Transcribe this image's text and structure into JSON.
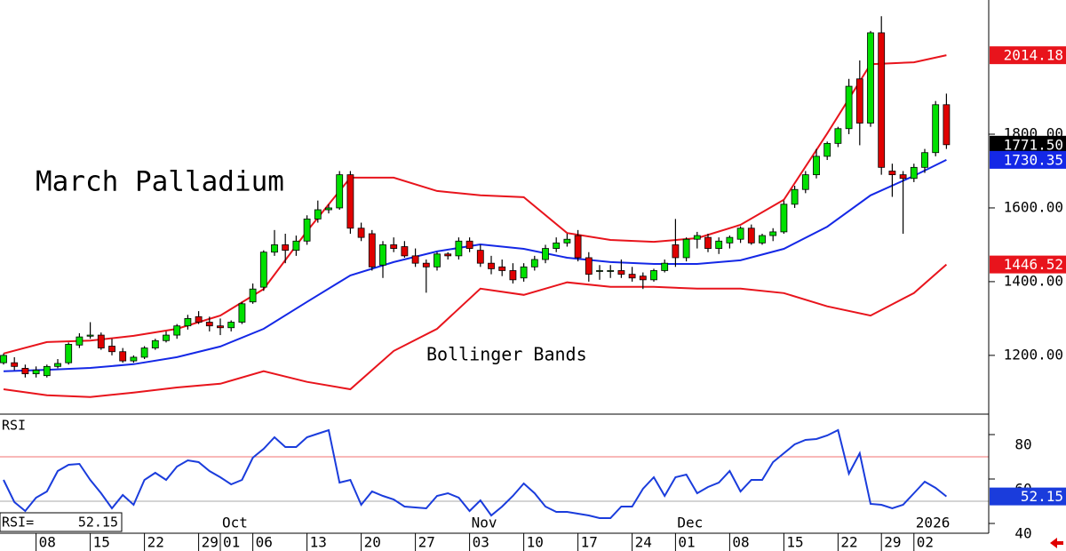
{
  "chart_data": [
    {
      "type": "candlestick",
      "title": "March Palladium",
      "annotation": "Bollinger Bands",
      "ylim": [
        1043,
        2164
      ],
      "yticks": [
        {
          "value": 1200,
          "label": "1200.00"
        },
        {
          "value": 1400,
          "label": "1400.00"
        },
        {
          "value": 1600,
          "label": "1600.00"
        },
        {
          "value": 1800,
          "label": "1800.00"
        }
      ],
      "categories": [
        null,
        null,
        null,
        "08",
        null,
        null,
        null,
        null,
        "15",
        null,
        null,
        null,
        null,
        "22",
        null,
        null,
        null,
        null,
        "29",
        null,
        "01",
        null,
        null,
        "06",
        null,
        null,
        null,
        null,
        "13",
        null,
        null,
        null,
        null,
        "20",
        null,
        null,
        null,
        null,
        "27",
        null,
        null,
        null,
        null,
        "03",
        null,
        null,
        null,
        null,
        "10",
        null,
        null,
        null,
        null,
        "17",
        null,
        null,
        null,
        null,
        "24",
        null,
        null,
        null,
        "01",
        null,
        null,
        null,
        null,
        "08",
        null,
        null,
        null,
        null,
        "15",
        null,
        null,
        null,
        null,
        "22",
        null,
        null,
        null,
        "29",
        null,
        null,
        "02",
        null,
        null,
        null
      ],
      "months": [
        null,
        null,
        null,
        null,
        null,
        null,
        null,
        null,
        null,
        null,
        null,
        null,
        null,
        null,
        null,
        null,
        null,
        null,
        null,
        null,
        "Oct",
        null,
        null,
        null,
        null,
        null,
        null,
        null,
        null,
        null,
        null,
        null,
        null,
        null,
        null,
        null,
        null,
        null,
        null,
        null,
        null,
        null,
        null,
        "Nov",
        null,
        null,
        null,
        null,
        null,
        null,
        null,
        null,
        null,
        null,
        null,
        null,
        null,
        null,
        null,
        null,
        null,
        null,
        "Dec",
        null,
        null,
        null,
        null,
        null,
        null,
        null,
        null,
        null,
        null,
        null,
        null,
        null,
        null,
        null,
        null,
        null,
        null,
        null,
        null,
        null,
        "2026",
        null,
        null,
        null
      ],
      "up_color": "#00e000",
      "down_color": "#e00000",
      "ohlc": [
        [
          1180,
          1205,
          1175,
          1200
        ],
        [
          1180,
          1195,
          1160,
          1170
        ],
        [
          1165,
          1175,
          1140,
          1150
        ],
        [
          1150,
          1170,
          1140,
          1160
        ],
        [
          1145,
          1175,
          1140,
          1170
        ],
        [
          1170,
          1190,
          1165,
          1178
        ],
        [
          1180,
          1235,
          1175,
          1230
        ],
        [
          1228,
          1260,
          1220,
          1250
        ],
        [
          1252,
          1290,
          1245,
          1255
        ],
        [
          1255,
          1262,
          1215,
          1220
        ],
        [
          1225,
          1245,
          1200,
          1210
        ],
        [
          1210,
          1220,
          1180,
          1185
        ],
        [
          1185,
          1200,
          1180,
          1195
        ],
        [
          1195,
          1225,
          1190,
          1220
        ],
        [
          1220,
          1245,
          1215,
          1240
        ],
        [
          1240,
          1265,
          1235,
          1255
        ],
        [
          1255,
          1285,
          1245,
          1280
        ],
        [
          1280,
          1310,
          1270,
          1300
        ],
        [
          1305,
          1320,
          1285,
          1290
        ],
        [
          1290,
          1305,
          1265,
          1280
        ],
        [
          1280,
          1300,
          1255,
          1275
        ],
        [
          1275,
          1295,
          1265,
          1290
        ],
        [
          1290,
          1345,
          1285,
          1340
        ],
        [
          1345,
          1395,
          1340,
          1380
        ],
        [
          1385,
          1485,
          1375,
          1480
        ],
        [
          1480,
          1540,
          1470,
          1500
        ],
        [
          1500,
          1530,
          1450,
          1485
        ],
        [
          1485,
          1525,
          1470,
          1510
        ],
        [
          1510,
          1580,
          1500,
          1570
        ],
        [
          1570,
          1620,
          1560,
          1595
        ],
        [
          1595,
          1610,
          1585,
          1600
        ],
        [
          1600,
          1700,
          1595,
          1690
        ],
        [
          1690,
          1700,
          1530,
          1545
        ],
        [
          1545,
          1560,
          1510,
          1520
        ],
        [
          1530,
          1540,
          1430,
          1440
        ],
        [
          1445,
          1510,
          1410,
          1500
        ],
        [
          1500,
          1520,
          1480,
          1490
        ],
        [
          1495,
          1510,
          1465,
          1470
        ],
        [
          1470,
          1490,
          1440,
          1450
        ],
        [
          1450,
          1460,
          1370,
          1440
        ],
        [
          1440,
          1480,
          1430,
          1475
        ],
        [
          1475,
          1480,
          1460,
          1470
        ],
        [
          1470,
          1520,
          1460,
          1510
        ],
        [
          1510,
          1520,
          1480,
          1490
        ],
        [
          1485,
          1500,
          1440,
          1450
        ],
        [
          1450,
          1470,
          1420,
          1435
        ],
        [
          1440,
          1460,
          1415,
          1430
        ],
        [
          1430,
          1450,
          1395,
          1405
        ],
        [
          1410,
          1450,
          1400,
          1440
        ],
        [
          1440,
          1470,
          1430,
          1460
        ],
        [
          1460,
          1500,
          1450,
          1490
        ],
        [
          1490,
          1520,
          1480,
          1505
        ],
        [
          1505,
          1530,
          1495,
          1515
        ],
        [
          1525,
          1540,
          1455,
          1465
        ],
        [
          1465,
          1480,
          1400,
          1420
        ],
        [
          1430,
          1445,
          1405,
          1430
        ],
        [
          1430,
          1445,
          1410,
          1430
        ],
        [
          1430,
          1460,
          1410,
          1420
        ],
        [
          1420,
          1440,
          1400,
          1410
        ],
        [
          1415,
          1425,
          1380,
          1405
        ],
        [
          1405,
          1435,
          1400,
          1430
        ],
        [
          1430,
          1460,
          1425,
          1450
        ],
        [
          1500,
          1570,
          1440,
          1465
        ],
        [
          1465,
          1520,
          1455,
          1515
        ],
        [
          1515,
          1535,
          1490,
          1525
        ],
        [
          1520,
          1530,
          1480,
          1490
        ],
        [
          1490,
          1520,
          1475,
          1510
        ],
        [
          1505,
          1525,
          1490,
          1520
        ],
        [
          1515,
          1550,
          1505,
          1545
        ],
        [
          1545,
          1555,
          1500,
          1505
        ],
        [
          1505,
          1530,
          1500,
          1525
        ],
        [
          1525,
          1545,
          1510,
          1535
        ],
        [
          1535,
          1620,
          1530,
          1610
        ],
        [
          1610,
          1660,
          1600,
          1650
        ],
        [
          1650,
          1700,
          1640,
          1690
        ],
        [
          1690,
          1760,
          1680,
          1740
        ],
        [
          1740,
          1780,
          1730,
          1775
        ],
        [
          1775,
          1820,
          1765,
          1815
        ],
        [
          1815,
          1950,
          1800,
          1930
        ],
        [
          1950,
          2000,
          1770,
          1830
        ],
        [
          1830,
          2080,
          1820,
          2075
        ],
        [
          2075,
          2120,
          1690,
          1710
        ],
        [
          1700,
          1720,
          1630,
          1690
        ],
        [
          1690,
          1700,
          1530,
          1680
        ],
        [
          1680,
          1720,
          1670,
          1710
        ],
        [
          1710,
          1760,
          1695,
          1750
        ],
        [
          1750,
          1890,
          1740,
          1880
        ],
        [
          1880,
          1910,
          1760,
          1771.5
        ]
      ],
      "band_x": [
        0,
        4,
        8,
        12,
        16,
        20,
        24,
        28,
        32,
        36,
        40,
        44,
        48,
        52,
        56,
        60,
        64,
        68,
        72,
        76,
        80,
        84,
        87
      ],
      "bands": [
        {
          "color": "#e8141c",
          "values": [
            1205,
            1236,
            1240,
            1253,
            1272,
            1308,
            1380,
            1537,
            1682,
            1682,
            1646,
            1634,
            1629,
            1532,
            1513,
            1508,
            1518,
            1554,
            1622,
            1802,
            1990,
            1995,
            2014.18
          ]
        },
        {
          "color": "#1428e6",
          "values": [
            1157,
            1161,
            1166,
            1176,
            1195,
            1224,
            1272,
            1345,
            1417,
            1453,
            1482,
            1501,
            1489,
            1465,
            1453,
            1448,
            1448,
            1458,
            1489,
            1549,
            1634,
            1687,
            1730.35
          ]
        },
        {
          "color": "#e8141c",
          "values": [
            1108,
            1092,
            1087,
            1099,
            1113,
            1123,
            1157,
            1128,
            1108,
            1212,
            1272,
            1381,
            1364,
            1398,
            1386,
            1386,
            1381,
            1381,
            1369,
            1333,
            1308,
            1369,
            1446.52
          ]
        }
      ],
      "right_markers": [
        {
          "value": 2014.18,
          "label": "2014.18",
          "color": "#e8141c"
        },
        {
          "value": 1771.5,
          "label": "1771.50",
          "color": "#000000"
        },
        {
          "value": 1730.35,
          "label": "1730.35",
          "color": "#1428e6"
        },
        {
          "value": 1446.52,
          "label": "1446.52",
          "color": "#e8141c"
        }
      ]
    },
    {
      "type": "line",
      "title": "RSI",
      "readout_label": "RSI=",
      "ylim": [
        35.6,
        88.8
      ],
      "yticks": [
        40,
        60,
        80
      ],
      "ref_lines": [
        {
          "value": 70,
          "color": "#f07070"
        },
        {
          "value": 50,
          "color": "#a8a8a8"
        }
      ],
      "color": "#1a3cdc",
      "values": [
        59.6,
        49.6,
        45.6,
        51.6,
        54.4,
        63.6,
        66.4,
        66.8,
        59.6,
        53.6,
        46.8,
        52.8,
        48.4,
        59.6,
        62.8,
        59.6,
        65.6,
        68.4,
        67.6,
        63.6,
        60.8,
        57.6,
        59.6,
        69.6,
        73.6,
        78.8,
        74.4,
        74.4,
        78.8,
        80.4,
        82,
        58.4,
        59.6,
        48.4,
        54.4,
        52.4,
        50.8,
        47.6,
        47.2,
        46.8,
        52.4,
        53.6,
        51.6,
        45.6,
        50.4,
        43.6,
        47.6,
        52.4,
        58,
        53.6,
        47.6,
        45.2,
        45.2,
        44.4,
        43.6,
        42.4,
        42.4,
        47.6,
        47.6,
        55.6,
        60.8,
        52.4,
        60.8,
        62,
        53.6,
        56.4,
        58.4,
        63.6,
        54.4,
        59.6,
        59.6,
        67.6,
        71.6,
        75.6,
        77.6,
        78,
        79.6,
        82,
        62.4,
        71.6,
        48.8,
        48.4,
        46.8,
        48.4,
        53.6,
        58.8,
        56,
        52.15
      ]
    }
  ]
}
